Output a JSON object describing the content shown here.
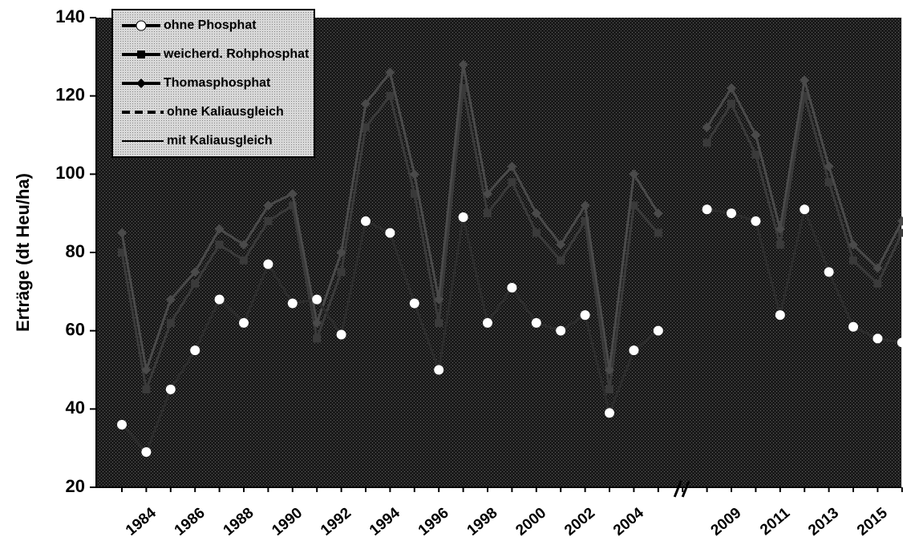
{
  "chart_data": {
    "type": "line",
    "ylabel": "Erträge (dt Heu/ha)",
    "ylim": [
      20,
      140
    ],
    "yticks": [
      20,
      40,
      60,
      80,
      100,
      120,
      140
    ],
    "categories": [
      null,
      "1984",
      null,
      "1986",
      null,
      "1988",
      null,
      "1990",
      null,
      "1992",
      null,
      "1994",
      null,
      "1996",
      null,
      "1998",
      null,
      "2000",
      null,
      "2002",
      null,
      "2004",
      null,
      null,
      null,
      "2009",
      null,
      "2011",
      null,
      "2013",
      null,
      "2015",
      null
    ],
    "series": [
      {
        "name": "ohne Phosphat",
        "color": "#ffffff",
        "marker": "circle",
        "values": [
          36,
          29,
          45,
          55,
          68,
          62,
          77,
          67,
          68,
          59,
          88,
          85,
          67,
          50,
          89,
          62,
          71,
          62,
          60,
          64,
          39,
          55,
          60,
          null,
          91,
          90,
          88,
          64,
          91,
          75,
          61,
          58,
          57
        ]
      },
      {
        "name": "weicherd. Rohphosphat",
        "color": "#3a3a3a",
        "marker": "square",
        "values": [
          80,
          45,
          62,
          72,
          82,
          78,
          88,
          92,
          58,
          75,
          112,
          120,
          95,
          62,
          122,
          90,
          98,
          85,
          78,
          88,
          45,
          92,
          85,
          null,
          108,
          118,
          105,
          82,
          120,
          98,
          78,
          72,
          85
        ]
      },
      {
        "name": "Thomasphosphat",
        "color": "#4a4a4a",
        "marker": "diamond",
        "values": [
          85,
          50,
          68,
          75,
          86,
          82,
          92,
          95,
          62,
          80,
          118,
          126,
          100,
          68,
          128,
          95,
          102,
          90,
          82,
          92,
          50,
          100,
          90,
          null,
          112,
          122,
          110,
          86,
          124,
          102,
          82,
          76,
          88
        ]
      }
    ],
    "line_styles": [
      {
        "label": "ohne Kaliausgleich",
        "dashed": true
      },
      {
        "label": "mit Kaliausgleich",
        "dashed": false
      }
    ]
  }
}
